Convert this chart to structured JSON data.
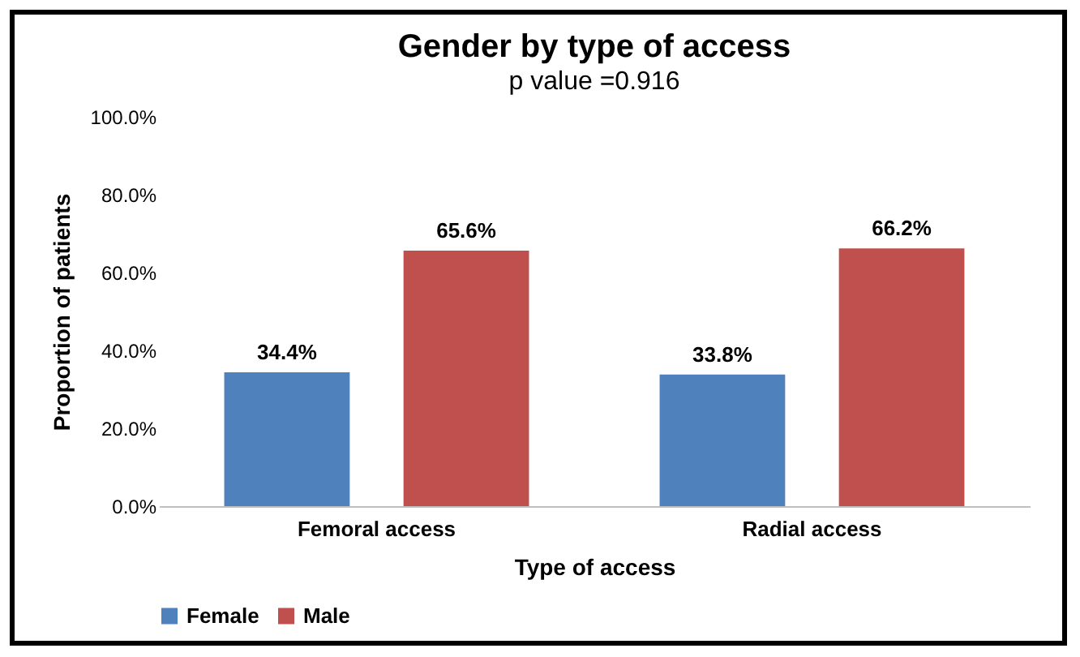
{
  "chart_data": {
    "type": "bar",
    "title": "Gender by type of access",
    "subtitle": "p value =0.916",
    "xlabel": "Type of access",
    "ylabel": "Proportion of patients",
    "categories": [
      "Femoral access",
      "Radial access"
    ],
    "series": [
      {
        "name": "Female",
        "color": "#4f81bd",
        "values": [
          34.4,
          33.8
        ],
        "value_labels": [
          "34.4%",
          "33.8%"
        ]
      },
      {
        "name": "Male",
        "color": "#c0504d",
        "values": [
          65.6,
          66.2
        ],
        "value_labels": [
          "65.6%",
          "66.2%"
        ]
      }
    ],
    "ylim": [
      0,
      100
    ],
    "yticks": [
      {
        "value": 0,
        "label": "0.0%"
      },
      {
        "value": 20,
        "label": "20.0%"
      },
      {
        "value": 40,
        "label": "40.0%"
      },
      {
        "value": 60,
        "label": "60.0%"
      },
      {
        "value": 80,
        "label": "80.0%"
      },
      {
        "value": 100,
        "label": "100.0%"
      }
    ],
    "grid": false,
    "legend": "bottom"
  }
}
